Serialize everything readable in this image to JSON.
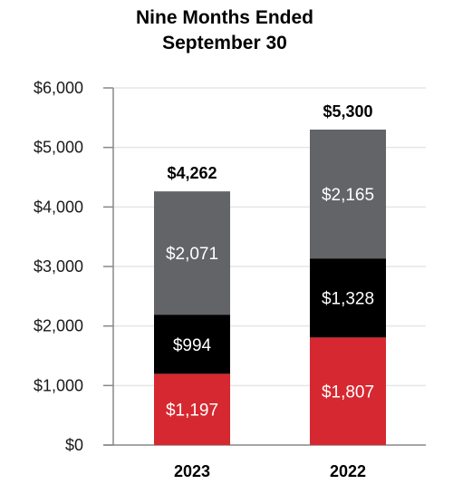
{
  "chart_data": {
    "type": "bar",
    "stacked": true,
    "title": [
      "Nine Months Ended",
      "September 30"
    ],
    "categories": [
      "2023",
      "2022"
    ],
    "series": [
      {
        "values": [
          1197,
          1807
        ],
        "color": "#d62830",
        "labels": [
          "$1,197",
          "$1,807"
        ]
      },
      {
        "values": [
          994,
          1328
        ],
        "color": "#000000",
        "labels": [
          "$994",
          "$1,328"
        ]
      },
      {
        "values": [
          2071,
          2165
        ],
        "color": "#636467",
        "labels": [
          "$2,071",
          "$2,165"
        ]
      }
    ],
    "totals": [
      "$4,262",
      "$5,300"
    ],
    "ylim": [
      0,
      6000
    ],
    "yticks": [
      0,
      1000,
      2000,
      3000,
      4000,
      5000,
      6000
    ],
    "ytick_labels": [
      "$0",
      "$1,000",
      "$2,000",
      "$3,000",
      "$4,000",
      "$5,000",
      "$6,000"
    ],
    "grid": true,
    "grid_color": "#e6e6e6",
    "xlabel": "",
    "ylabel": ""
  }
}
